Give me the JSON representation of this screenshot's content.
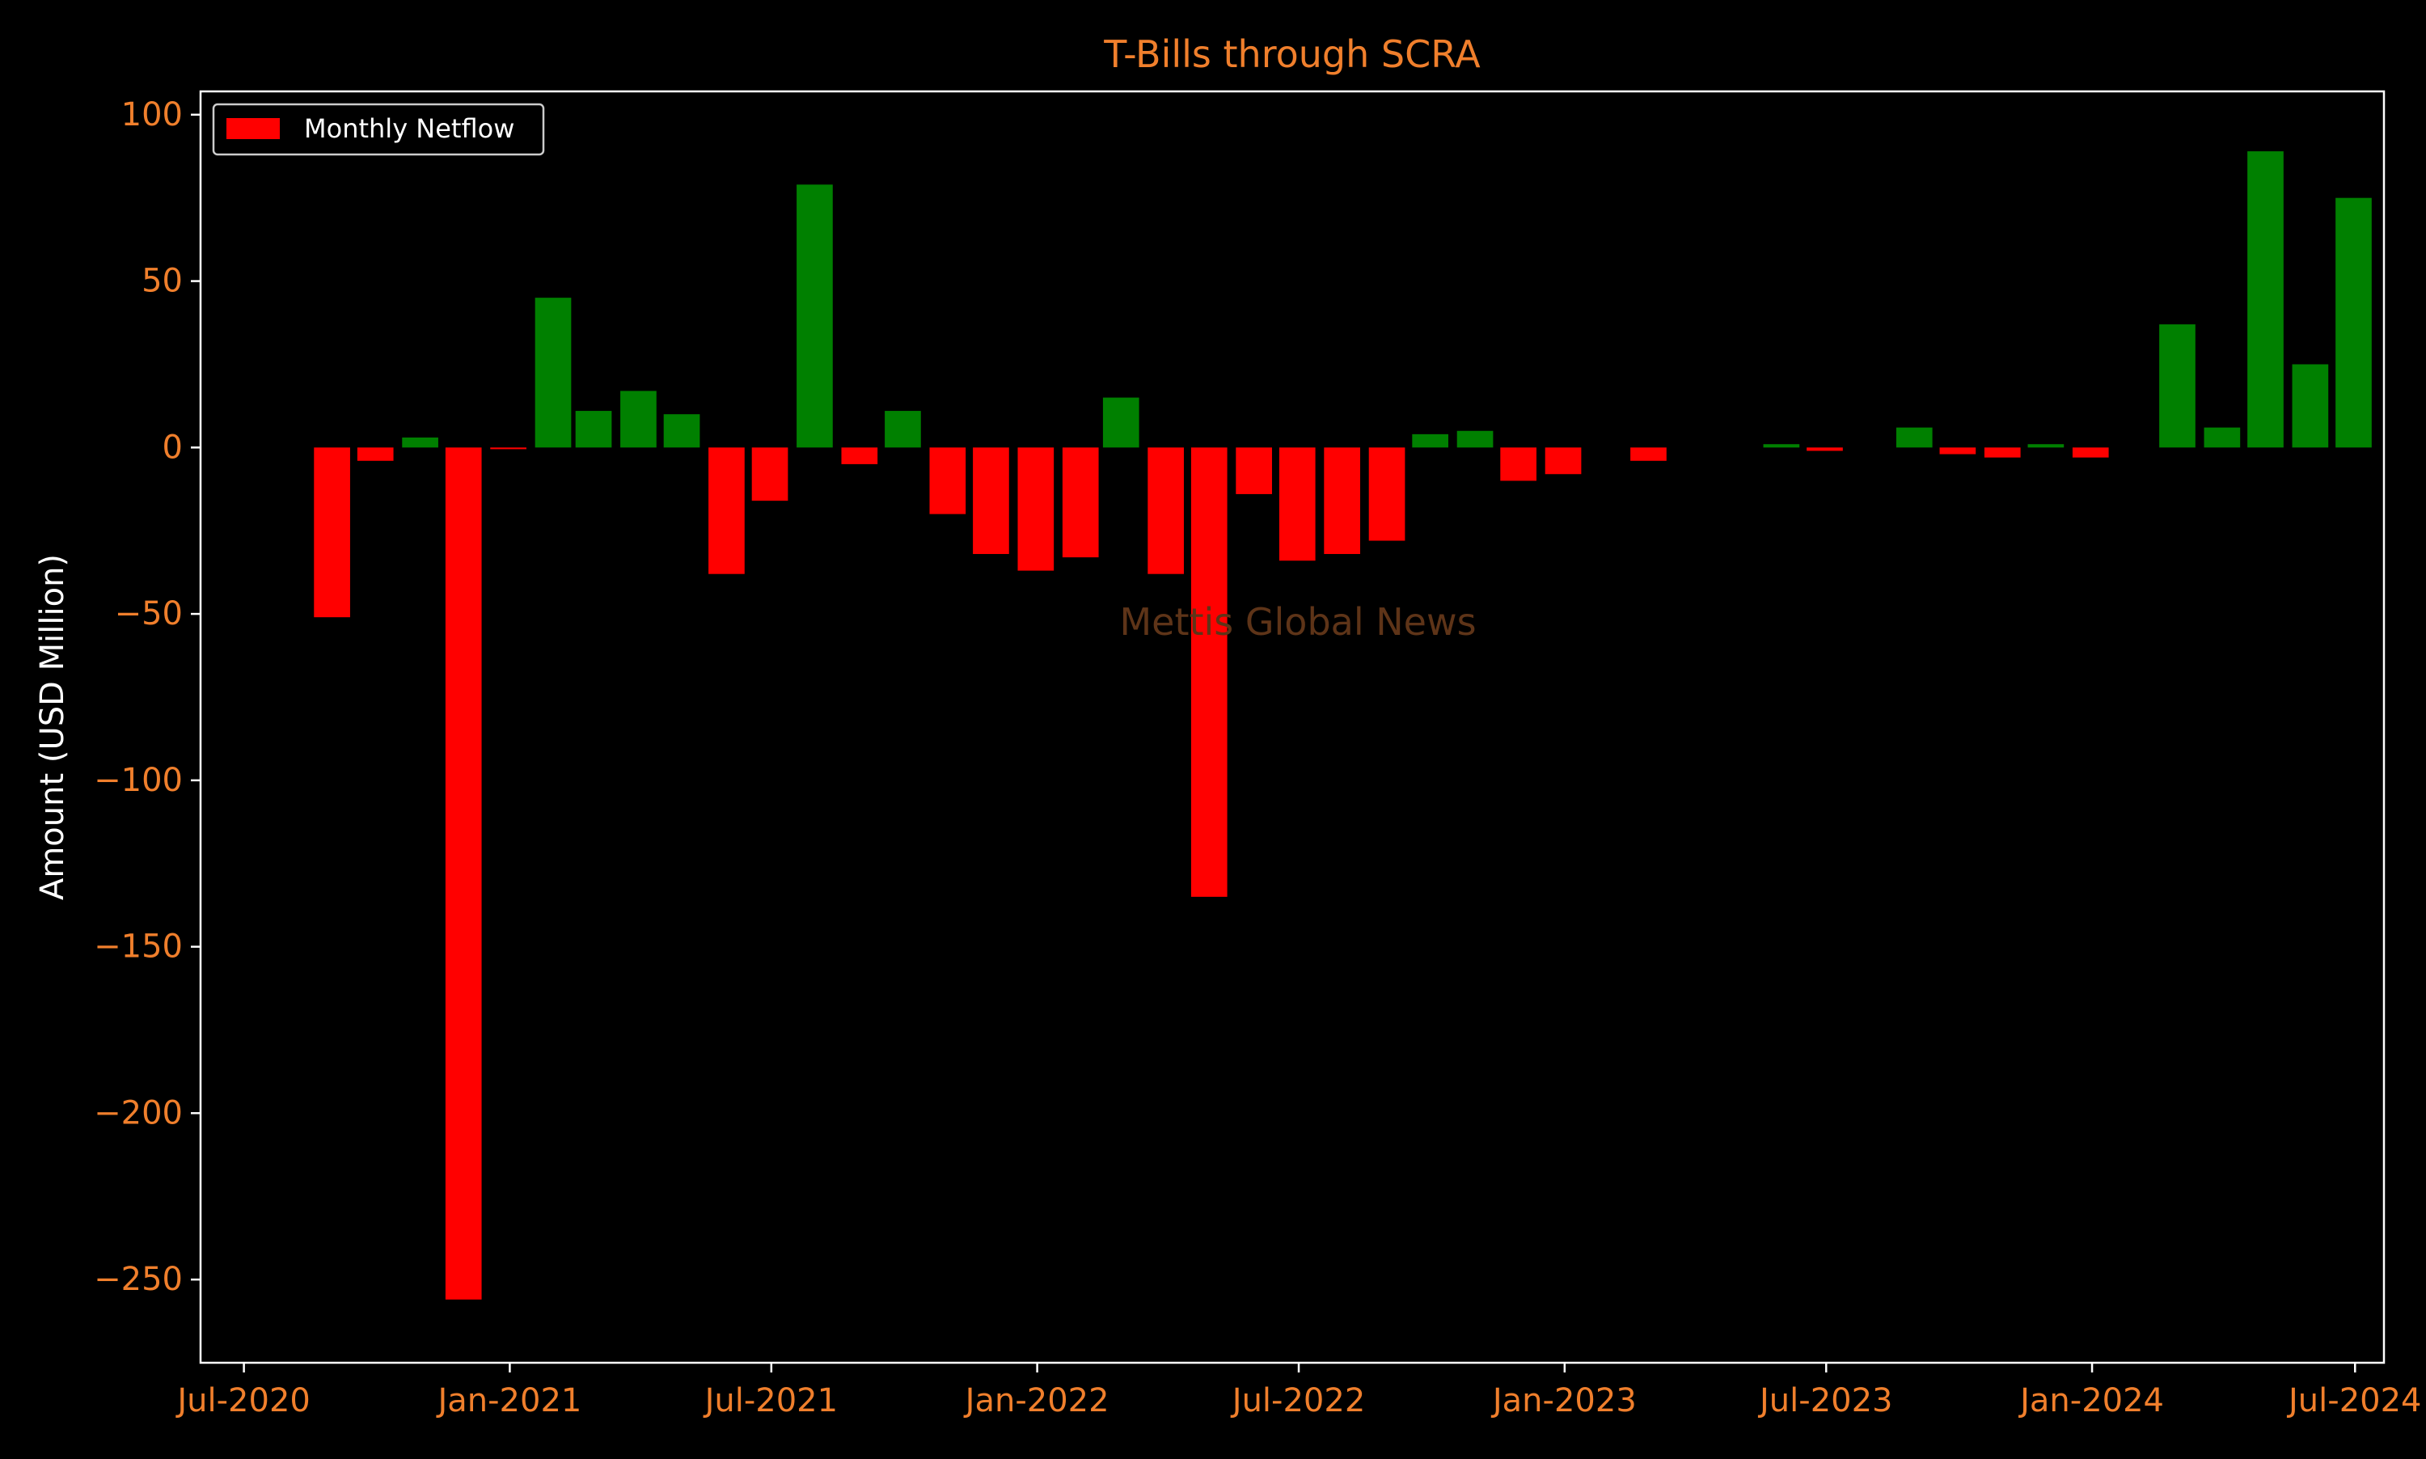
{
  "chart_data": {
    "type": "bar",
    "title": "T-Bills through SCRA",
    "xlabel": "",
    "ylabel": "Amount (USD Million)",
    "ylim": [
      -275,
      107
    ],
    "xlim": [
      "2020-06-01",
      "2024-07-21"
    ],
    "yticks": [
      100,
      50,
      0,
      -50,
      -100,
      -150,
      -200,
      -250
    ],
    "ytick_labels": [
      "100",
      "50",
      "0",
      "−50",
      "−100",
      "−150",
      "−200",
      "−250"
    ],
    "xticks": [
      "2020-07-01",
      "2021-01-01",
      "2021-07-01",
      "2022-01-01",
      "2022-07-01",
      "2023-01-01",
      "2023-07-01",
      "2024-01-01",
      "2024-07-01"
    ],
    "xtick_labels": [
      "Jul-2020",
      "Jan-2021",
      "Jul-2021",
      "Jan-2022",
      "Jul-2022",
      "Jan-2023",
      "Jul-2023",
      "Jan-2024",
      "Jul-2024"
    ],
    "grid": false,
    "legend": {
      "position": "top-left",
      "entries": [
        {
          "label": "Monthly Netflow",
          "color": "#ff0000"
        }
      ]
    },
    "annotation": "Mettis Global News",
    "colors": {
      "positive": "#008000",
      "negative": "#ff0000",
      "title": "#f07f2c",
      "tick_label": "#f07f2c",
      "axis_label": "#ffffff",
      "spine": "#ffffff",
      "watermark": "#5e3418",
      "background": "#000000"
    },
    "series": [
      {
        "name": "Monthly Netflow",
        "points": [
          {
            "date": "2020-08-31",
            "value": -51
          },
          {
            "date": "2020-09-30",
            "value": -4
          },
          {
            "date": "2020-10-31",
            "value": 3
          },
          {
            "date": "2020-11-30",
            "value": -256
          },
          {
            "date": "2020-12-31",
            "value": -0.5
          },
          {
            "date": "2021-01-31",
            "value": 45
          },
          {
            "date": "2021-02-28",
            "value": 11
          },
          {
            "date": "2021-03-31",
            "value": 17
          },
          {
            "date": "2021-04-30",
            "value": 10
          },
          {
            "date": "2021-05-31",
            "value": -38
          },
          {
            "date": "2021-06-30",
            "value": -16
          },
          {
            "date": "2021-07-31",
            "value": 79
          },
          {
            "date": "2021-08-31",
            "value": -5
          },
          {
            "date": "2021-09-30",
            "value": 11
          },
          {
            "date": "2021-10-31",
            "value": -20
          },
          {
            "date": "2021-11-30",
            "value": -32
          },
          {
            "date": "2021-12-31",
            "value": -37
          },
          {
            "date": "2022-01-31",
            "value": -33
          },
          {
            "date": "2022-02-28",
            "value": 15
          },
          {
            "date": "2022-03-31",
            "value": -38
          },
          {
            "date": "2022-04-30",
            "value": -135
          },
          {
            "date": "2022-05-31",
            "value": -14
          },
          {
            "date": "2022-06-30",
            "value": -34
          },
          {
            "date": "2022-07-31",
            "value": -32
          },
          {
            "date": "2022-08-31",
            "value": -28
          },
          {
            "date": "2022-09-30",
            "value": 4
          },
          {
            "date": "2022-10-31",
            "value": 5
          },
          {
            "date": "2022-11-30",
            "value": -10
          },
          {
            "date": "2022-12-31",
            "value": -8
          },
          {
            "date": "2023-02-28",
            "value": -4
          },
          {
            "date": "2023-05-31",
            "value": 1
          },
          {
            "date": "2023-06-30",
            "value": -1
          },
          {
            "date": "2023-08-31",
            "value": 6
          },
          {
            "date": "2023-09-30",
            "value": -2
          },
          {
            "date": "2023-10-31",
            "value": -3
          },
          {
            "date": "2023-11-30",
            "value": 1
          },
          {
            "date": "2023-12-31",
            "value": -3
          },
          {
            "date": "2024-02-29",
            "value": 37
          },
          {
            "date": "2024-03-31",
            "value": 6
          },
          {
            "date": "2024-04-30",
            "value": 89
          },
          {
            "date": "2024-05-31",
            "value": 25
          },
          {
            "date": "2024-06-30",
            "value": 75
          }
        ]
      }
    ]
  }
}
